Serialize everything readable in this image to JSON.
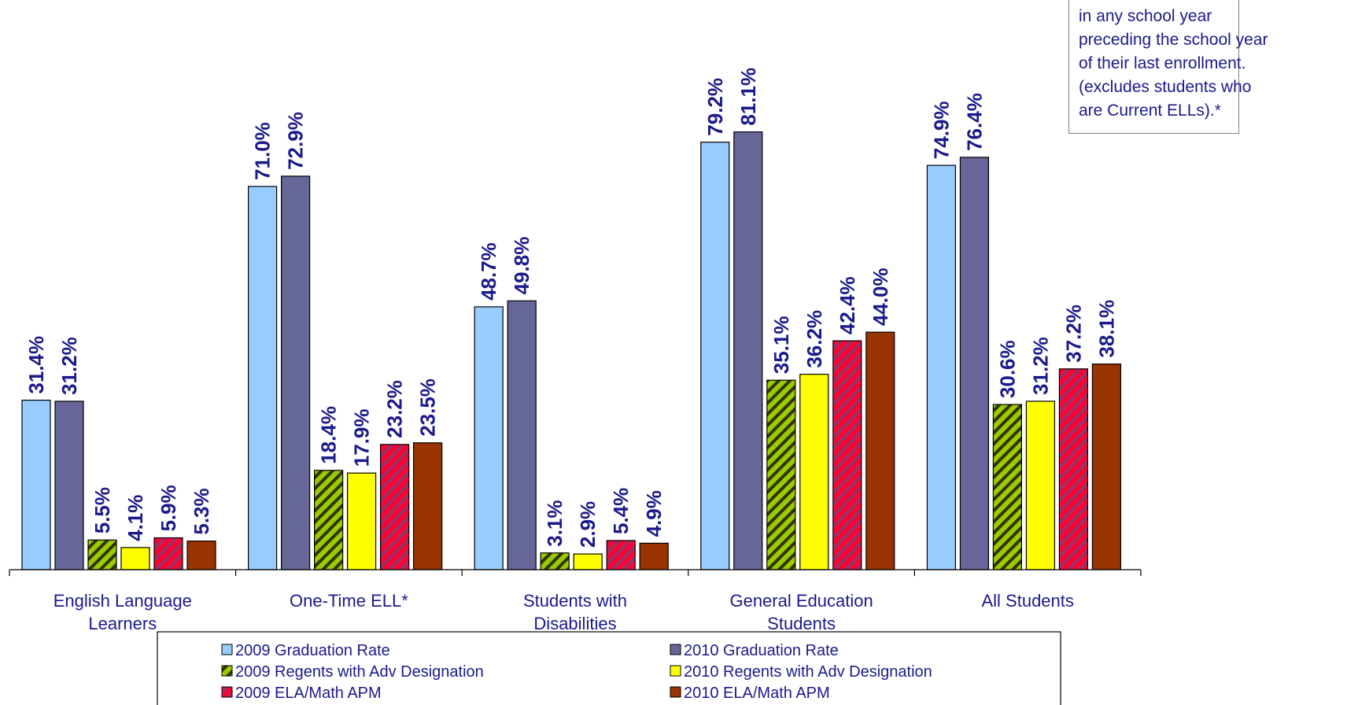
{
  "chart_data": {
    "type": "bar",
    "categories": [
      [
        "English Language",
        "Learners"
      ],
      [
        "One-Time ELL*"
      ],
      [
        "Students with",
        "Disabilities"
      ],
      [
        "General Education",
        "Students"
      ],
      [
        "All Students"
      ]
    ],
    "series": [
      {
        "name": "2009 Graduation Rate",
        "color": "#99ccff",
        "pattern": "solid",
        "values": [
          31.4,
          71.0,
          48.7,
          79.2,
          74.9
        ]
      },
      {
        "name": "2010 Graduation Rate",
        "color": "#666699",
        "pattern": "solid",
        "values": [
          31.2,
          72.9,
          49.8,
          81.1,
          76.4
        ]
      },
      {
        "name": "2009 Regents with Adv Designation",
        "color": "#99cc00",
        "pattern": "hatch-green",
        "values": [
          5.5,
          18.4,
          3.1,
          35.1,
          30.6
        ]
      },
      {
        "name": "2010 Regents with Adv Designation",
        "color": "#ffff00",
        "pattern": "solid",
        "values": [
          4.1,
          17.9,
          2.9,
          36.2,
          31.2
        ]
      },
      {
        "name": "2009 ELA/Math APM",
        "color": "#ff0033",
        "pattern": "hatch-red",
        "values": [
          5.9,
          23.2,
          5.4,
          42.4,
          37.2
        ]
      },
      {
        "name": "2010 ELA/Math APM",
        "color": "#993300",
        "pattern": "solid",
        "values": [
          5.3,
          23.5,
          4.9,
          44.0,
          38.1
        ]
      }
    ],
    "data_labels": [
      [
        "31.4%",
        "71.0%",
        "48.7%",
        "79.2%",
        "74.9%"
      ],
      [
        "31.2%",
        "72.9%",
        "49.8%",
        "81.1%",
        "76.4%"
      ],
      [
        "5.5%",
        "18.4%",
        "3.1%",
        "35.1%",
        "30.6%"
      ],
      [
        "4.1%",
        "17.9%",
        "2.9%",
        "36.2%",
        "31.2%"
      ],
      [
        "5.9%",
        "23.2%",
        "5.4%",
        "42.4%",
        "37.2%"
      ],
      [
        "5.3%",
        "23.5%",
        "4.9%",
        "44.0%",
        "38.1%"
      ]
    ],
    "ylim": [
      0,
      100
    ],
    "grid": false,
    "legend": "bottom"
  },
  "note": {
    "lines": [
      "in any school year",
      "preceding the school year",
      "of their last enrollment.",
      "(excludes students who",
      "are Current ELLs).*"
    ]
  }
}
